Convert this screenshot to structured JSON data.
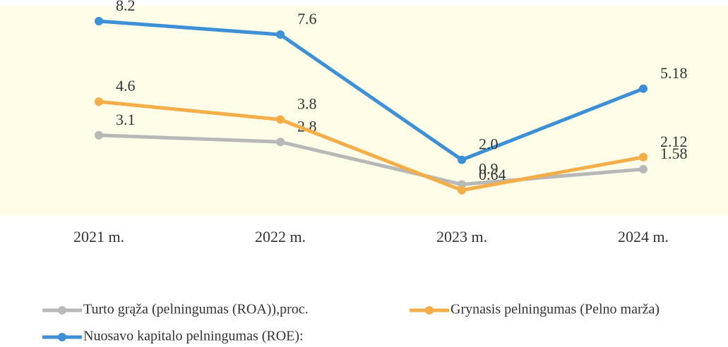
{
  "chart_data": {
    "type": "line",
    "categories": [
      "2021 m.",
      "2022 m.",
      "2023 m.",
      "2024 m."
    ],
    "series": [
      {
        "name": "Turto grąža (pelningumas (ROA)),proc.",
        "color": "#b8b8b8",
        "values": [
          3.1,
          2.8,
          0.9,
          1.58
        ]
      },
      {
        "name": "Grynasis pelningumas (Pelno marža)",
        "color": "#f5ad47",
        "values": [
          4.6,
          3.8,
          0.64,
          2.12
        ]
      },
      {
        "name": "Nuosavo kapitalo pelningumas (ROE):",
        "color": "#3d8fd6",
        "values": [
          8.2,
          7.6,
          2.0,
          5.18
        ],
        "value_labels": [
          "8.2",
          "7.6",
          "2.0",
          "5.18"
        ]
      }
    ]
  }
}
